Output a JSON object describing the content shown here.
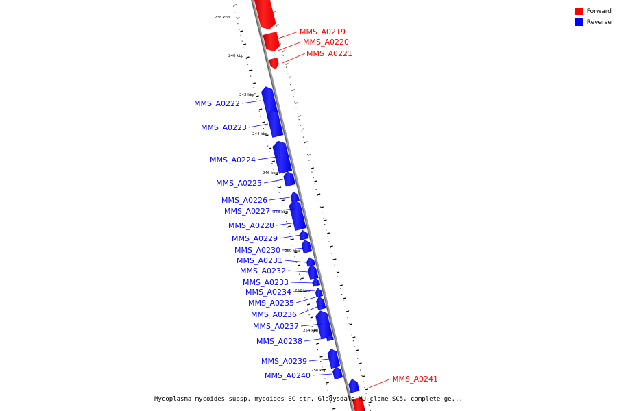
{
  "caption": "Mycoplasma mycoides subsp. mycoides SC str. Gladysdale MU clone SC5, complete ge...",
  "legend": [
    {
      "label": "Forward",
      "color": "#ff0000"
    },
    {
      "label": "Reverse",
      "color": "#0000ff"
    }
  ],
  "colors": {
    "forward": "#ff0000",
    "reverse": "#0000ff",
    "backbone": "#8a8a8a"
  },
  "ticks": [
    "238 kbp",
    "240 kbp",
    "242 kbp",
    "244 kbp",
    "246 kbp",
    "248 kbp",
    "250 kbp",
    "252 kbp",
    "254 kbp",
    "256 kbp"
  ],
  "genes": [
    {
      "name": "MMS_A0219",
      "strand": "forward"
    },
    {
      "name": "MMS_A0220",
      "strand": "forward"
    },
    {
      "name": "MMS_A0221",
      "strand": "forward"
    },
    {
      "name": "MMS_A0222",
      "strand": "reverse"
    },
    {
      "name": "MMS_A0223",
      "strand": "reverse"
    },
    {
      "name": "MMS_A0224",
      "strand": "reverse"
    },
    {
      "name": "MMS_A0225",
      "strand": "reverse"
    },
    {
      "name": "MMS_A0226",
      "strand": "reverse"
    },
    {
      "name": "MMS_A0227",
      "strand": "reverse"
    },
    {
      "name": "MMS_A0228",
      "strand": "reverse"
    },
    {
      "name": "MMS_A0229",
      "strand": "reverse"
    },
    {
      "name": "MMS_A0230",
      "strand": "reverse"
    },
    {
      "name": "MMS_A0231",
      "strand": "reverse"
    },
    {
      "name": "MMS_A0232",
      "strand": "reverse"
    },
    {
      "name": "MMS_A0233",
      "strand": "reverse"
    },
    {
      "name": "MMS_A0234",
      "strand": "reverse"
    },
    {
      "name": "MMS_A0235",
      "strand": "reverse"
    },
    {
      "name": "MMS_A0236",
      "strand": "reverse"
    },
    {
      "name": "MMS_A0237",
      "strand": "reverse"
    },
    {
      "name": "MMS_A0238",
      "strand": "reverse"
    },
    {
      "name": "MMS_A0239",
      "strand": "reverse"
    },
    {
      "name": "MMS_A0240",
      "strand": "reverse"
    },
    {
      "name": "MMS_A0241",
      "strand": "forward"
    }
  ]
}
